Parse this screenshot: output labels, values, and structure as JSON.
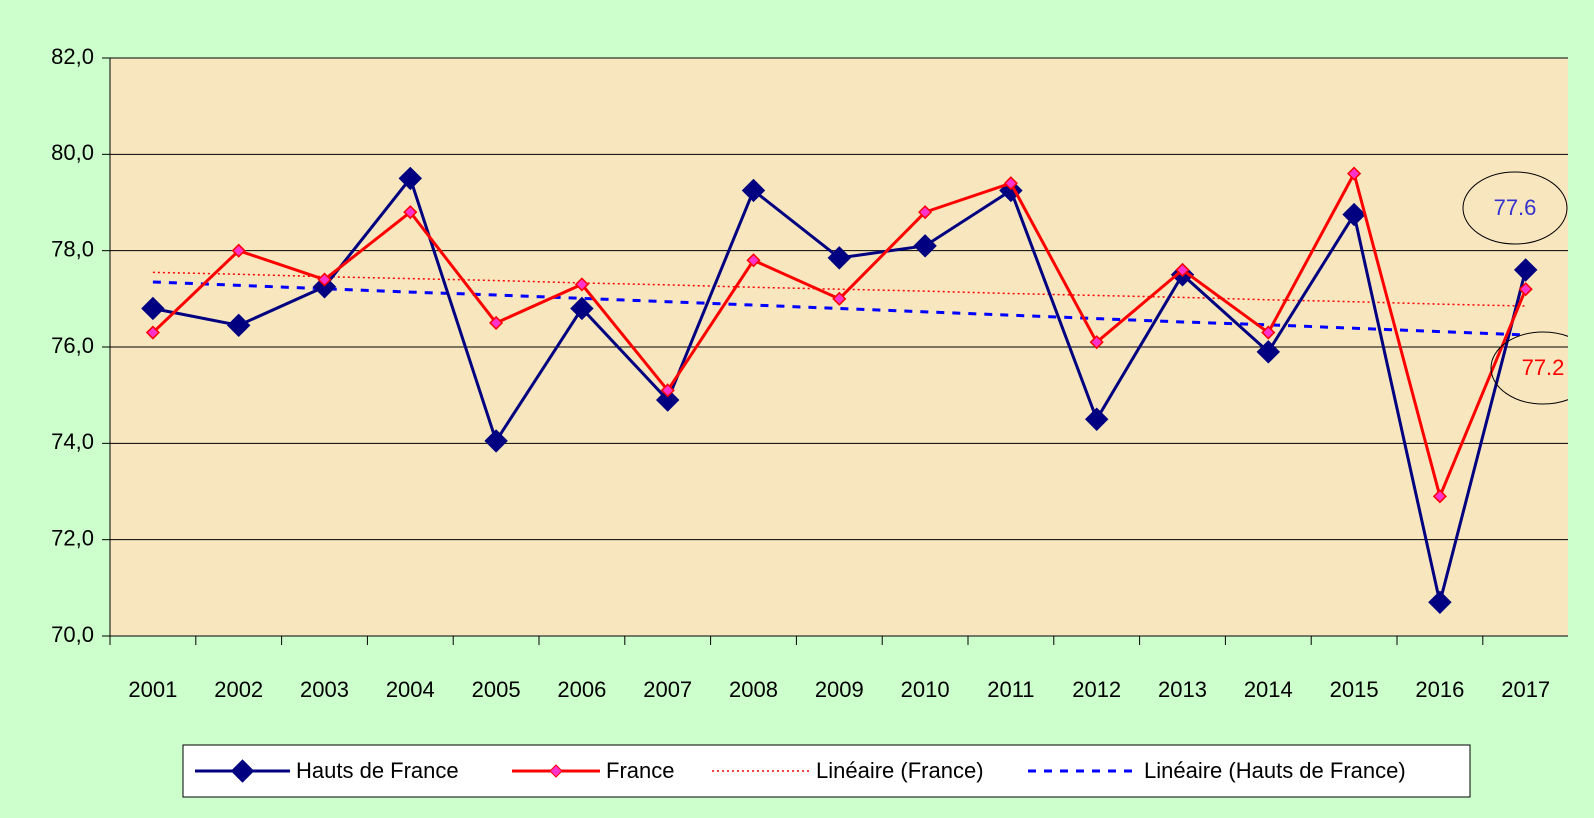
{
  "chart_data": {
    "type": "line",
    "categories": [
      "2001",
      "2002",
      "2003",
      "2004",
      "2005",
      "2006",
      "2007",
      "2008",
      "2009",
      "2010",
      "2011",
      "2012",
      "2013",
      "2014",
      "2015",
      "2016",
      "2017"
    ],
    "series": [
      {
        "name": "Hauts de France",
        "color": "#000080",
        "style": "marker-line",
        "values": [
          76.8,
          76.45,
          77.25,
          79.5,
          74.05,
          76.8,
          74.9,
          79.25,
          77.85,
          78.1,
          79.25,
          74.5,
          77.5,
          75.9,
          78.75,
          70.7,
          77.6
        ]
      },
      {
        "name": "France",
        "color": "#ff0000",
        "marker_color": "#ff33cc",
        "style": "marker-line",
        "values": [
          76.3,
          78.0,
          77.4,
          78.8,
          76.5,
          77.3,
          75.1,
          77.8,
          77.0,
          78.8,
          79.4,
          76.1,
          77.6,
          76.3,
          79.6,
          72.9,
          77.2
        ]
      },
      {
        "name": "Linéaire (France)",
        "color": "#ff0000",
        "style": "dotted",
        "values": [
          77.55,
          77.51,
          77.46,
          77.42,
          77.38,
          77.33,
          77.29,
          77.24,
          77.2,
          77.16,
          77.11,
          77.07,
          77.03,
          76.98,
          76.94,
          76.89,
          76.85
        ]
      },
      {
        "name": "Linéaire (Hauts de France)",
        "color": "#0000ff",
        "style": "dashed",
        "values": [
          77.35,
          77.28,
          77.21,
          77.14,
          77.08,
          77.01,
          76.94,
          76.87,
          76.8,
          76.73,
          76.66,
          76.59,
          76.52,
          76.46,
          76.39,
          76.32,
          76.25
        ]
      }
    ],
    "annotations": [
      {
        "text": "77.6",
        "color": "#3333cc"
      },
      {
        "text": "77.2",
        "color": "#ff0000"
      }
    ],
    "ylim": [
      70,
      82
    ],
    "yticks": [
      {
        "value": 70,
        "label": "70,0"
      },
      {
        "value": 72,
        "label": "72,0"
      },
      {
        "value": 74,
        "label": "74,0"
      },
      {
        "value": 76,
        "label": "76,0"
      },
      {
        "value": 78,
        "label": "78,0"
      },
      {
        "value": 80,
        "label": "80,0"
      },
      {
        "value": 82,
        "label": "82,0"
      }
    ],
    "grid": true,
    "legend": "bottom",
    "plot_background": "#f8e6bf"
  }
}
